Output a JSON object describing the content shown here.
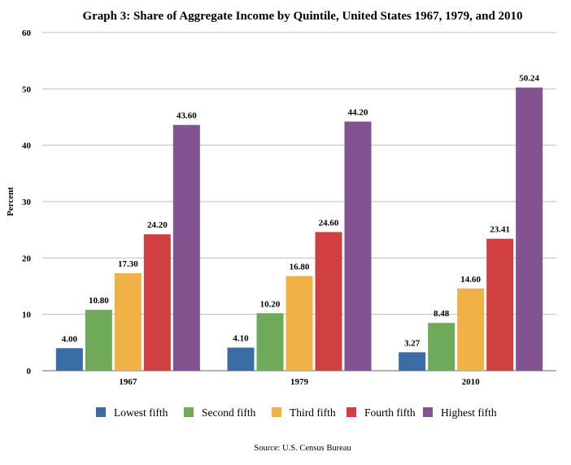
{
  "chart_data": {
    "type": "bar",
    "title": "Graph 3: Share of Aggregate Income by Quintile, United States 1967, 1979, and 2010",
    "xlabel": "",
    "ylabel": "Percent",
    "ylim": [
      0,
      60
    ],
    "yticks": [
      0,
      10,
      20,
      30,
      40,
      50,
      60
    ],
    "categories": [
      "1967",
      "1979",
      "2010"
    ],
    "series": [
      {
        "name": "Lowest fifth",
        "color": "#3A6CA5",
        "values": [
          4.0,
          4.1,
          3.27
        ],
        "labels": [
          "4.00",
          "4.10",
          "3.27"
        ]
      },
      {
        "name": "Second fifth",
        "color": "#6FA95A",
        "values": [
          10.8,
          10.2,
          8.48
        ],
        "labels": [
          "10.80",
          "10.20",
          "8.48"
        ]
      },
      {
        "name": "Third fifth",
        "color": "#F0B247",
        "values": [
          17.3,
          16.8,
          14.6
        ],
        "labels": [
          "17.30",
          "16.80",
          "14.60"
        ]
      },
      {
        "name": "Fourth fifth",
        "color": "#D04040",
        "values": [
          24.2,
          24.6,
          23.41
        ],
        "labels": [
          "24.20",
          "24.60",
          "23.41"
        ]
      },
      {
        "name": "Highest fifth",
        "color": "#825390",
        "values": [
          43.6,
          44.2,
          50.24
        ],
        "labels": [
          "43.60",
          "44.20",
          "50.24"
        ]
      }
    ],
    "grid": true,
    "legend_position": "bottom",
    "source": "Source: U.S. Census Bureau"
  }
}
